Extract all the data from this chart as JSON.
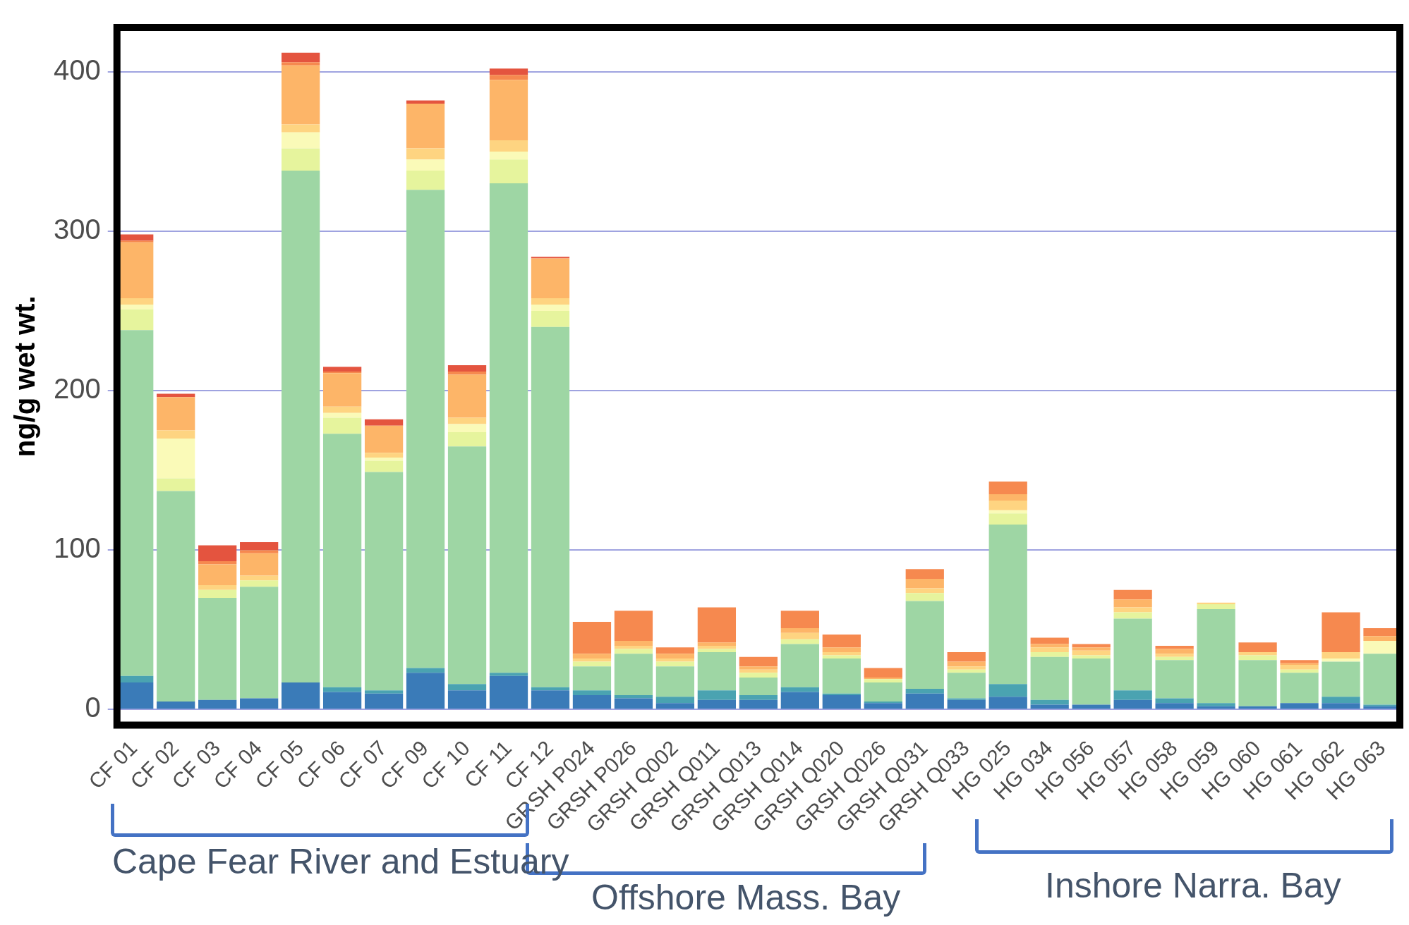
{
  "chart_data": {
    "type": "bar",
    "stacked": true,
    "ylabel": "ng/g wet wt.",
    "ylim": [
      -12,
      430
    ],
    "yticks": [
      0,
      100,
      200,
      300,
      400
    ],
    "grid": "y",
    "categories": [
      "CF 01",
      "CF 02",
      "CF 03",
      "CF 04",
      "CF 05",
      "CF 06",
      "CF 07",
      "CF 09",
      "CF 10",
      "CF 11",
      "CF 12",
      "GRSH P024",
      "GRSH P026",
      "GRSH Q002",
      "GRSH Q011",
      "GRSH Q013",
      "GRSH Q014",
      "GRSH Q020",
      "GRSH Q026",
      "GRSH Q031",
      "GRSH Q033",
      "HG 025",
      "HG 034",
      "HG 056",
      "HG 057",
      "HG 058",
      "HG 059",
      "HG 060",
      "HG 061",
      "HG 062",
      "HG 063"
    ],
    "series": [
      {
        "color": "#3a7bb8",
        "values": [
          17,
          5,
          6,
          7,
          17,
          11,
          10,
          23,
          12,
          21,
          12,
          9,
          7,
          4,
          6,
          6,
          11,
          9,
          4,
          10,
          6,
          8,
          3,
          3,
          6,
          4,
          2,
          2,
          4,
          4,
          2
        ]
      },
      {
        "color": "#4aa3b1",
        "values": [
          4,
          0,
          0,
          0,
          0,
          3,
          2,
          3,
          4,
          2,
          2,
          3,
          2,
          4,
          6,
          3,
          3,
          1,
          1,
          3,
          1,
          8,
          3,
          0,
          6,
          3,
          2,
          0,
          0,
          4,
          1
        ]
      },
      {
        "color": "#9ed6a4",
        "values": [
          217,
          132,
          64,
          70,
          321,
          159,
          137,
          300,
          149,
          307,
          226,
          15,
          26,
          19,
          24,
          11,
          27,
          22,
          12,
          55,
          16,
          100,
          27,
          29,
          45,
          24,
          59,
          29,
          19,
          22,
          32
        ]
      },
      {
        "color": "#e6f49d",
        "values": [
          13,
          8,
          5,
          4,
          14,
          10,
          7,
          12,
          9,
          15,
          10,
          3,
          3,
          3,
          2,
          3,
          3,
          2,
          2,
          5,
          2,
          7,
          3,
          2,
          4,
          2,
          3,
          3,
          2,
          0,
          0
        ]
      },
      {
        "color": "#fafab8",
        "values": [
          3,
          25,
          0,
          0,
          10,
          3,
          2,
          7,
          5,
          5,
          4,
          0,
          0,
          0,
          0,
          0,
          0,
          0,
          0,
          0,
          0,
          2,
          0,
          0,
          0,
          0,
          0,
          0,
          0,
          2,
          8
        ]
      },
      {
        "color": "#fed481",
        "values": [
          4,
          5,
          3,
          3,
          5,
          4,
          3,
          7,
          4,
          7,
          4,
          2,
          2,
          2,
          2,
          2,
          4,
          2,
          0,
          3,
          2,
          6,
          3,
          3,
          3,
          2,
          1,
          2,
          3,
          4,
          0
        ]
      },
      {
        "color": "#fdb568",
        "values": [
          35,
          21,
          13,
          14,
          37,
          21,
          17,
          28,
          27,
          38,
          25,
          3,
          3,
          3,
          2,
          2,
          3,
          3,
          1,
          6,
          3,
          4,
          2,
          2,
          5,
          3,
          0,
          0,
          1,
          0,
          3
        ]
      },
      {
        "color": "#f6894f",
        "values": [
          1,
          0,
          2,
          2,
          2,
          1,
          0,
          0,
          2,
          3,
          0,
          20,
          19,
          4,
          22,
          6,
          11,
          8,
          6,
          6,
          6,
          8,
          4,
          2,
          6,
          2,
          0,
          6,
          2,
          25,
          5
        ]
      },
      {
        "color": "#e4543f",
        "values": [
          4,
          2,
          10,
          5,
          6,
          3,
          4,
          2,
          4,
          4,
          1,
          0,
          0,
          0,
          0,
          0,
          0,
          0,
          0,
          0,
          0,
          0,
          0,
          0,
          0,
          0,
          0,
          0,
          0,
          0,
          0
        ]
      }
    ],
    "annotations": [
      "Cape Fear River and Estuary",
      "Offshore Mass. Bay",
      "Inshore Narra. Bay"
    ]
  }
}
